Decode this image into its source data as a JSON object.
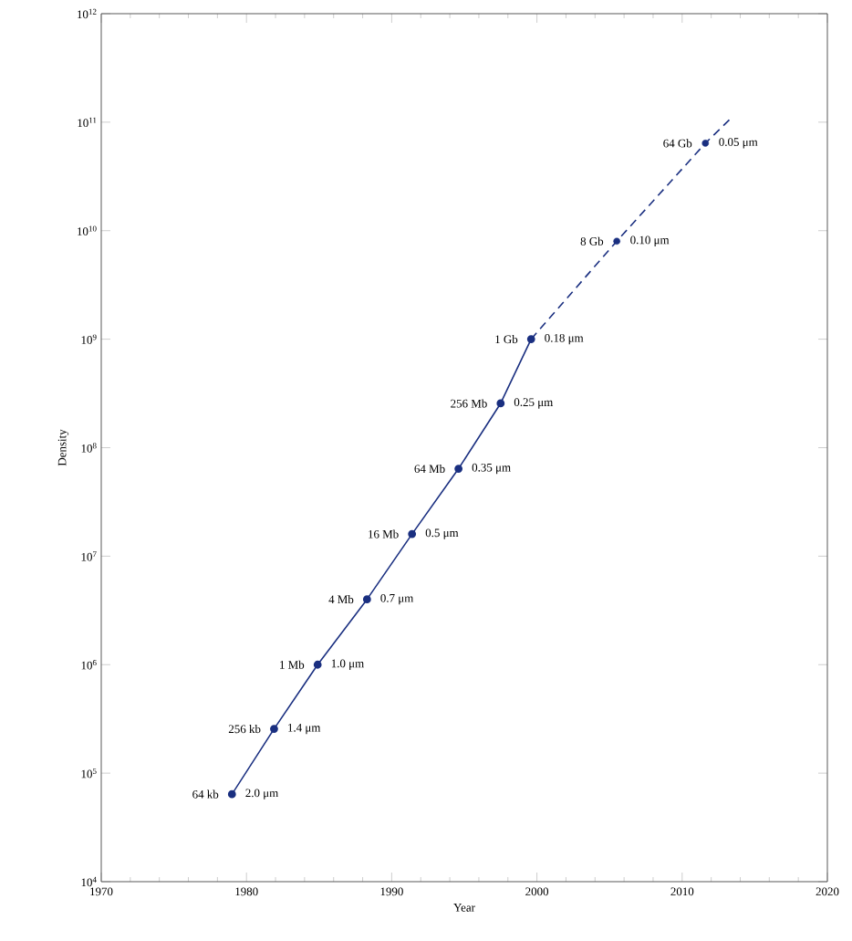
{
  "chart_data": {
    "type": "line",
    "xlabel": "Year",
    "ylabel": "Density",
    "log": "y",
    "xlim": [
      1970,
      2020
    ],
    "xticks": [
      1970,
      1980,
      1990,
      2000,
      2010,
      2020
    ],
    "ylim": [
      10000,
      1000000000000
    ],
    "yticks": [
      {
        "value": 10000,
        "label": "10$^{4}$"
      },
      {
        "value": 100000,
        "label": "10$^{5}$"
      },
      {
        "value": 1000000,
        "label": "10$^{6}$"
      },
      {
        "value": 10000000,
        "label": "10$^{7}$"
      },
      {
        "value": 100000000,
        "label": "10$^{8}$"
      },
      {
        "value": 1000000000,
        "label": "10$^{9}$"
      },
      {
        "value": 10000000000,
        "label": "10$^{10}$"
      },
      {
        "value": 100000000000,
        "label": "10$^{11}$"
      },
      {
        "value": 1000000000000,
        "label": "10$^{12}$"
      }
    ],
    "series": [
      {
        "color": "#1a2f80",
        "marker": "circle",
        "line_style": "solid",
        "x": [
          1979.0,
          1981.9,
          1984.9,
          1988.3,
          1991.4,
          1994.6,
          1997.5,
          1999.6
        ],
        "values": [
          64000,
          256000,
          1000000,
          4000000,
          16000000,
          64000000,
          256000000,
          1000000000
        ]
      },
      {
        "color": "#1a2f80",
        "marker": "none",
        "line_style": "dashed",
        "x": [
          1999.6,
          2005.5,
          2011.6,
          2013.4
        ],
        "values": [
          1000000000,
          8000000000,
          64000000000,
          110000000000
        ]
      },
      {
        "type": "scatter",
        "color": "#1a2f80",
        "marker": "circle",
        "x": [
          2005.5,
          2011.6
        ],
        "values": [
          8000000000,
          64000000000
        ]
      }
    ],
    "annotations": [
      {
        "text": "64 kb",
        "x": 1979.0,
        "y": 64000
      },
      {
        "text": "2.0 μm",
        "x": 1979.0,
        "y": 64000
      },
      {
        "text": "256 kb",
        "x": 1981.9,
        "y": 256000
      },
      {
        "text": "1.4 μm",
        "x": 1981.9,
        "y": 256000
      },
      {
        "text": "1 Mb",
        "x": 1984.9,
        "y": 1000000
      },
      {
        "text": "1.0 μm",
        "x": 1984.9,
        "y": 1000000
      },
      {
        "text": "4 Mb",
        "x": 1988.3,
        "y": 4000000
      },
      {
        "text": "0.7 μm",
        "x": 1988.3,
        "y": 4000000
      },
      {
        "text": "16 Mb",
        "x": 1991.4,
        "y": 16000000
      },
      {
        "text": "0.5 μm",
        "x": 1991.4,
        "y": 16000000
      },
      {
        "text": "64 Mb",
        "x": 1994.6,
        "y": 64000000
      },
      {
        "text": "0.35 μm",
        "x": 1994.6,
        "y": 64000000
      },
      {
        "text": "256 Mb",
        "x": 1997.5,
        "y": 256000000
      },
      {
        "text": "0.25 μm",
        "x": 1997.5,
        "y": 256000000
      },
      {
        "text": "1 Gb",
        "x": 1999.6,
        "y": 1000000000
      },
      {
        "text": "0.18 μm",
        "x": 1999.6,
        "y": 1000000000
      },
      {
        "text": "8 Gb",
        "x": 2005.5,
        "y": 8000000000
      },
      {
        "text": "0.10 μm",
        "x": 2005.5,
        "y": 8000000000
      },
      {
        "text": "64 Gb",
        "x": 2011.6,
        "y": 64000000000
      },
      {
        "text": "0.05 μm",
        "x": 2011.6,
        "y": 64000000000
      }
    ]
  }
}
